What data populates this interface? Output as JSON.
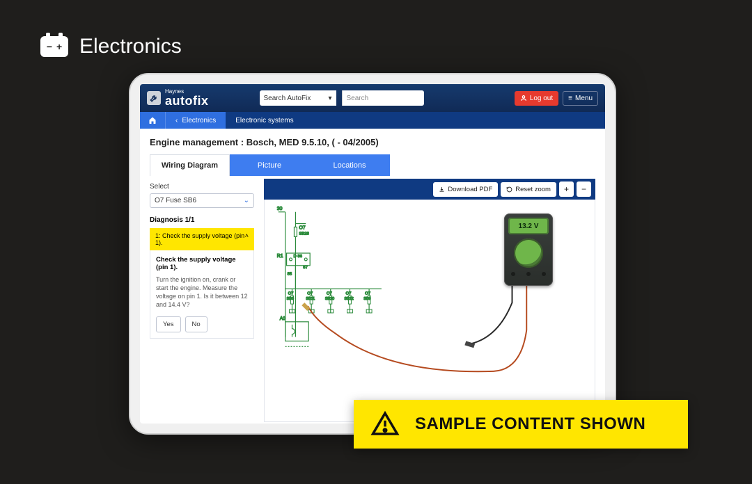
{
  "category": {
    "label": "Electronics",
    "icon_minus": "−",
    "icon_plus": "+"
  },
  "header": {
    "brand_small": "Haynes",
    "brand_big": "autofix",
    "search_select": "Search AutoFix",
    "search_placeholder": "Search",
    "logout": "Log out",
    "menu": "Menu"
  },
  "breadcrumb": {
    "back": "Electronics",
    "current": "Electronic systems"
  },
  "page": {
    "title": "Engine management :  Bosch, MED 9.5.10, ( - 04/2005)"
  },
  "tabs": {
    "wiring": "Wiring Diagram",
    "picture": "Picture",
    "locations": "Locations"
  },
  "side": {
    "select_label": "Select",
    "select_value": "O7  Fuse  SB6",
    "diagnosis_label": "Diagnosis 1/1",
    "step_label": "1: Check the supply voltage (pin 1).",
    "question": "Check the supply voltage (pin 1).",
    "instruction": "Turn the ignition on, crank or start the engine. Measure the voltage on pin 1. Is it between 12 and 14.4 V?",
    "yes": "Yes",
    "no": "No"
  },
  "toolbar": {
    "download": "Download PDF",
    "reset": "Reset zoom",
    "plus": "+",
    "minus": "−"
  },
  "meter": {
    "reading": "13.2 V"
  },
  "banner": {
    "text": "SAMPLE CONTENT SHOWN"
  },
  "wiring": {
    "stroke": "#2a8a3a",
    "red": "#c43a2e",
    "labels": {
      "top_num": "30",
      "o7": "O7",
      "o7sub": "SB28",
      "r1": "R1",
      "r1b": "D  86",
      "r1c": "87",
      "n85": "85",
      "a3": "A3",
      "row": [
        {
          "t": "O7",
          "b": "SB6"
        },
        {
          "t": "O7",
          "b": "SB11"
        },
        {
          "t": "O7",
          "b": "SB10"
        },
        {
          "t": "O7",
          "b": "SB12"
        },
        {
          "t": "O7",
          "b": "SB9"
        }
      ]
    },
    "probe_color": "#b54a1f"
  }
}
